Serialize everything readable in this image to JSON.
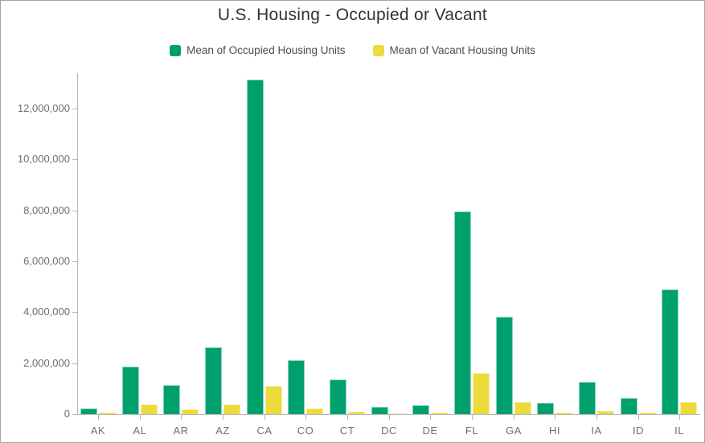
{
  "window": {
    "title": "U.S. Housing - Occupied or Vacant"
  },
  "legend": [
    {
      "label": "Mean of Occupied Housing Units",
      "color": "#00A06E"
    },
    {
      "label": "Mean of Vacant Housing Units",
      "color": "#EDDA3B"
    }
  ],
  "chart_data": {
    "type": "bar",
    "title": "U.S. Housing - Occupied or Vacant",
    "xlabel": "",
    "ylabel": "",
    "categories": [
      "AK",
      "AL",
      "AR",
      "AZ",
      "CA",
      "CO",
      "CT",
      "DC",
      "DE",
      "FL",
      "GA",
      "HI",
      "IA",
      "ID",
      "IL"
    ],
    "series": [
      {
        "name": "Mean of Occupied Housing Units",
        "color": "#00A06E",
        "values": [
          220000,
          1870000,
          1150000,
          2610000,
          13150000,
          2110000,
          1350000,
          270000,
          340000,
          7950000,
          3820000,
          450000,
          1260000,
          620000,
          4880000
        ]
      },
      {
        "name": "Mean of Vacant Housing Units",
        "color": "#EDDA3B",
        "values": [
          50000,
          370000,
          180000,
          380000,
          1090000,
          210000,
          110000,
          35000,
          65000,
          1600000,
          470000,
          60000,
          120000,
          55000,
          470000
        ]
      }
    ],
    "yticks": [
      0,
      2000000,
      4000000,
      6000000,
      8000000,
      10000000,
      12000000
    ],
    "ylim": [
      0,
      13400000
    ],
    "grid": false,
    "legend_position": "top"
  },
  "colors": {
    "background": "#FFFFFF",
    "border": "#A6A6A6",
    "axis_line": "#B5B5B5",
    "axis_text": "#6E6E6E",
    "title_text": "#323232",
    "legend_text": "#4D4D4D"
  }
}
